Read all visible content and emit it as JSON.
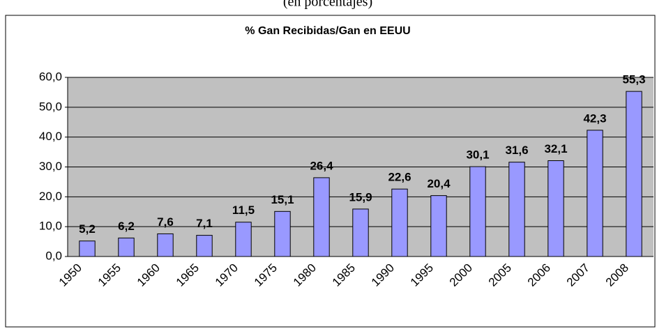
{
  "chart_data": {
    "type": "bar",
    "title": "% Gan Recibidas/Gan en EEUU",
    "subtitle": "(en porcentajes)",
    "categories": [
      "1950",
      "1955",
      "1960",
      "1965",
      "1970",
      "1975",
      "1980",
      "1985",
      "1990",
      "1995",
      "2000",
      "2005",
      "2006",
      "2007",
      "2008"
    ],
    "values": [
      5.2,
      6.2,
      7.6,
      7.1,
      11.5,
      15.1,
      26.4,
      15.9,
      22.6,
      20.4,
      30.1,
      31.6,
      32.1,
      42.3,
      55.3
    ],
    "value_labels": [
      "5,2",
      "6,2",
      "7,6",
      "7,1",
      "11,5",
      "15,1",
      "26,4",
      "15,9",
      "22,6",
      "20,4",
      "30,1",
      "31,6",
      "32,1",
      "42,3",
      "55,3"
    ],
    "color": "#9999ff",
    "ylim": [
      0,
      60
    ],
    "yticks": [
      {
        "value": 0,
        "label": "0,0"
      },
      {
        "value": 10,
        "label": "10,0"
      },
      {
        "value": 20,
        "label": "20,0"
      },
      {
        "value": 30,
        "label": "30,0"
      },
      {
        "value": 40,
        "label": "40,0"
      },
      {
        "value": 50,
        "label": "50,0"
      },
      {
        "value": 60,
        "label": "60,0"
      }
    ],
    "grid": true
  }
}
